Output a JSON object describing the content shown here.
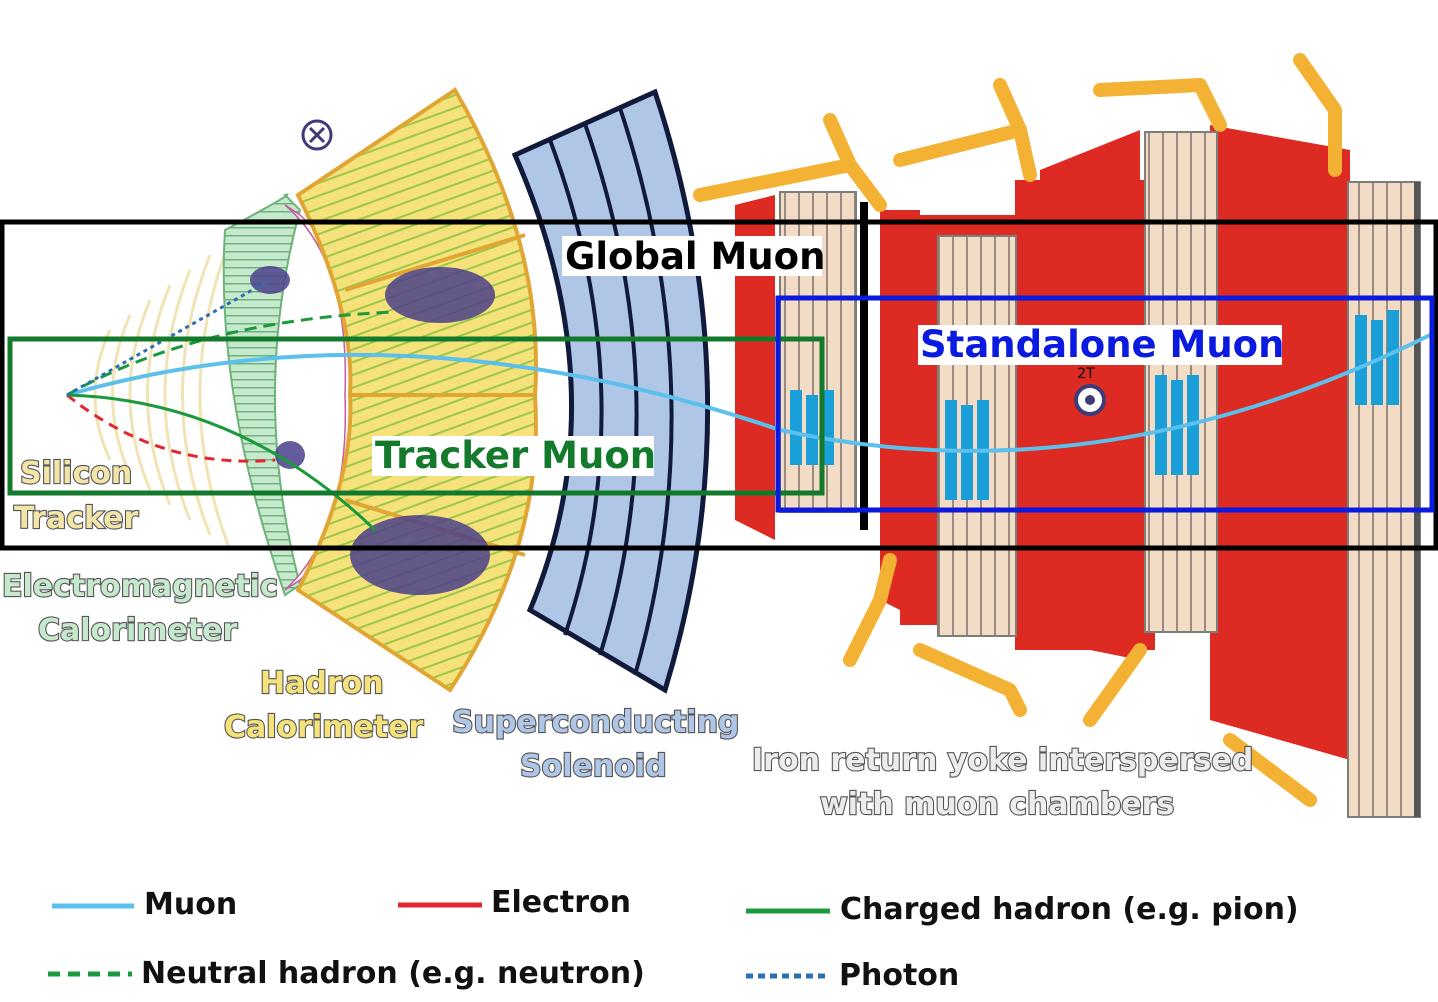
{
  "labels": {
    "silicon_line1": "Silicon",
    "silicon_line2": "Tracker",
    "ecal_line1": "Electromagnetic",
    "ecal_line2": "Calorimeter",
    "hcal_line1": "Hadron",
    "hcal_line2": "Calorimeter",
    "solenoid_line1": "Superconducting",
    "solenoid_line2": "Solenoid",
    "yoke_line1": "Iron return yoke interspersed",
    "yoke_line2": "with muon chambers",
    "field": "2T"
  },
  "boxes": {
    "global": "Global Muon",
    "standalone": "Standalone Muon",
    "tracker": "Tracker Muon"
  },
  "legend": {
    "muon": "Muon",
    "electron": "Electron",
    "charged_hadron": "Charged hadron (e.g. pion)",
    "neutral_hadron": "Neutral hadron (e.g. neutron)",
    "photon": "Photon"
  },
  "colors": {
    "muon": "#5bc0eb",
    "electron": "#e0282e",
    "charged_hadron": "#1a9a3c",
    "neutral_hadron": "#1a9a3c",
    "photon": "#2a6fb0",
    "global_box": "#000000",
    "standalone_box": "#0a1adf",
    "tracker_box": "#137a2c",
    "yoke": "#dd2a22",
    "hcal": "#f6e27a",
    "solenoid": "#afc6e6",
    "ecal": "#c6e8cc",
    "support": "#f3b233"
  }
}
